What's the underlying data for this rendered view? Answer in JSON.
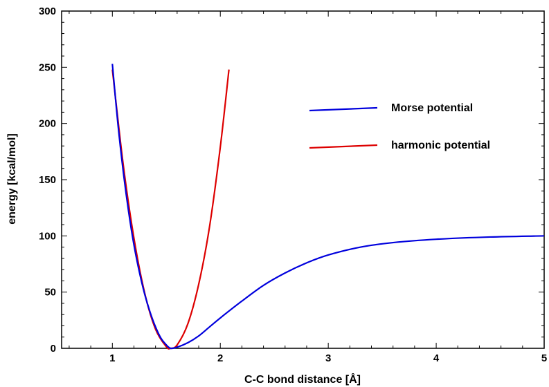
{
  "chart_data": {
    "type": "line",
    "title": "",
    "xlabel": "C-C bond distance [Å]",
    "ylabel": "energy [kcal/mol]",
    "xlim": [
      0.53,
      5.0
    ],
    "ylim": [
      0,
      300
    ],
    "xticks": [
      1,
      2,
      3,
      4,
      5
    ],
    "yticks": [
      0,
      50,
      100,
      150,
      200,
      250,
      300
    ],
    "legend_position": "top-right",
    "series": [
      {
        "name": "Morse potential",
        "color": "#0000dd",
        "x": [
          1.0,
          1.05,
          1.1,
          1.15,
          1.2,
          1.25,
          1.3,
          1.35,
          1.4,
          1.45,
          1.5,
          1.54,
          1.6,
          1.7,
          1.8,
          1.9,
          2.0,
          2.2,
          2.4,
          2.6,
          2.8,
          3.0,
          3.3,
          3.6,
          4.0,
          4.5,
          5.0
        ],
        "y": [
          253,
          201,
          158,
          122,
          92,
          68,
          48,
          32,
          19,
          9,
          3,
          0,
          1,
          5,
          11,
          19,
          27,
          42,
          56,
          67,
          76,
          83,
          90,
          94,
          97,
          99,
          100
        ]
      },
      {
        "name": "harmonic potential",
        "color": "#dd0000",
        "x": [
          1.0,
          1.1,
          1.2,
          1.3,
          1.4,
          1.5,
          1.54,
          1.6,
          1.7,
          1.8,
          1.9,
          2.0,
          2.08
        ],
        "y": [
          248,
          164,
          98,
          49,
          17,
          1.4,
          0,
          3,
          22,
          57,
          108,
          179,
          248
        ]
      }
    ]
  }
}
